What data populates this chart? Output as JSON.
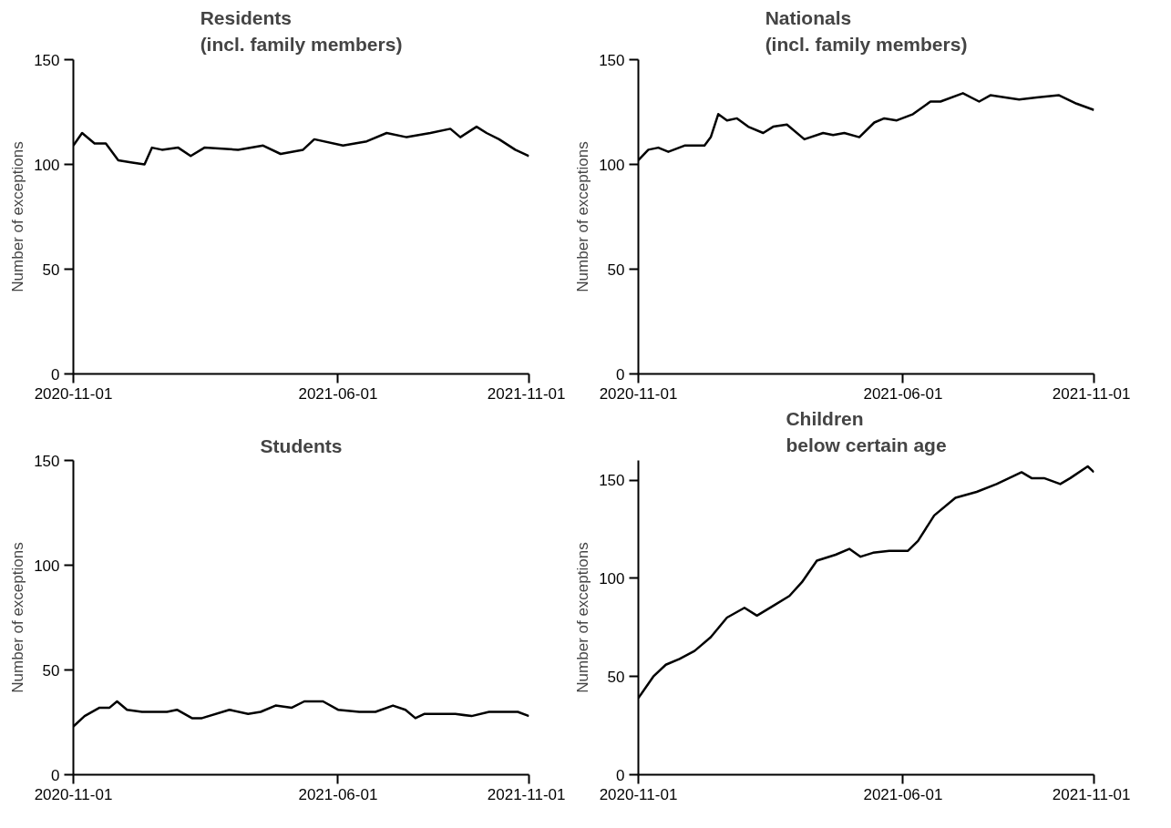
{
  "chart_data": [
    {
      "type": "line",
      "title": "Residents\n(incl. family members)",
      "ylabel": "Number of exceptions",
      "xlim": [
        "2020-11-01",
        "2021-11-01"
      ],
      "xticks": [
        "2020-11-01",
        "2021-06-01",
        "2021-11-01"
      ],
      "ylim": [
        0,
        150
      ],
      "yticks": [
        0,
        50,
        100,
        150
      ],
      "grid": false,
      "series": [
        {
          "color": "#000000",
          "x": [
            "2020-11-01",
            "2020-11-08",
            "2020-11-18",
            "2020-11-27",
            "2020-12-07",
            "2020-12-17",
            "2020-12-28",
            "2021-01-03",
            "2021-01-11",
            "2021-01-24",
            "2021-02-03",
            "2021-02-14",
            "2021-03-13",
            "2021-04-02",
            "2021-04-16",
            "2021-05-04",
            "2021-05-13",
            "2021-06-05",
            "2021-06-24",
            "2021-07-10",
            "2021-07-26",
            "2021-08-14",
            "2021-08-30",
            "2021-09-07",
            "2021-09-20",
            "2021-09-28",
            "2021-10-08",
            "2021-10-21",
            "2021-11-01"
          ],
          "values": [
            109,
            115,
            110,
            110,
            102,
            101,
            100,
            108,
            107,
            108,
            104,
            108,
            107,
            109,
            105,
            107,
            112,
            109,
            111,
            115,
            113,
            115,
            117,
            113,
            118,
            115,
            112,
            107,
            104
          ]
        }
      ]
    },
    {
      "type": "line",
      "title": "Nationals\n(incl. family members)",
      "ylabel": "Number of exceptions",
      "xlim": [
        "2020-11-01",
        "2021-11-01"
      ],
      "xticks": [
        "2020-11-01",
        "2021-06-01",
        "2021-11-01"
      ],
      "ylim": [
        0,
        150
      ],
      "yticks": [
        0,
        50,
        100,
        150
      ],
      "grid": false,
      "series": [
        {
          "color": "#000000",
          "x": [
            "2020-11-01",
            "2020-11-09",
            "2020-11-17",
            "2020-11-25",
            "2020-12-08",
            "2020-12-24",
            "2020-12-29",
            "2021-01-04",
            "2021-01-11",
            "2021-01-19",
            "2021-01-28",
            "2021-02-09",
            "2021-02-17",
            "2021-02-28",
            "2021-03-14",
            "2021-03-29",
            "2021-04-06",
            "2021-04-15",
            "2021-04-27",
            "2021-05-09",
            "2021-05-17",
            "2021-05-27",
            "2021-06-09",
            "2021-06-23",
            "2021-07-01",
            "2021-07-19",
            "2021-08-01",
            "2021-08-10",
            "2021-08-22",
            "2021-09-02",
            "2021-09-16",
            "2021-10-04",
            "2021-10-18",
            "2021-11-01"
          ],
          "values": [
            102,
            107,
            108,
            106,
            109,
            109,
            113,
            124,
            121,
            122,
            118,
            115,
            118,
            119,
            112,
            115,
            114,
            115,
            113,
            120,
            122,
            121,
            124,
            130,
            130,
            134,
            130,
            133,
            132,
            131,
            132,
            133,
            129,
            126
          ]
        }
      ]
    },
    {
      "type": "line",
      "title": "Students",
      "ylabel": "Number of exceptions",
      "xlim": [
        "2020-11-01",
        "2021-11-01"
      ],
      "xticks": [
        "2020-11-01",
        "2021-06-01",
        "2021-11-01"
      ],
      "ylim": [
        0,
        150
      ],
      "yticks": [
        0,
        50,
        100,
        150
      ],
      "grid": false,
      "series": [
        {
          "color": "#000000",
          "x": [
            "2020-11-01",
            "2020-11-10",
            "2020-11-22",
            "2020-11-30",
            "2020-12-06",
            "2020-12-14",
            "2020-12-26",
            "2021-01-15",
            "2021-01-23",
            "2021-02-04",
            "2021-02-12",
            "2021-03-06",
            "2021-03-21",
            "2021-03-31",
            "2021-04-12",
            "2021-04-25",
            "2021-05-05",
            "2021-05-20",
            "2021-06-01",
            "2021-06-18",
            "2021-07-01",
            "2021-07-15",
            "2021-07-25",
            "2021-08-02",
            "2021-08-09",
            "2021-09-03",
            "2021-09-16",
            "2021-09-30",
            "2021-10-23",
            "2021-11-01"
          ],
          "values": [
            23,
            28,
            32,
            32,
            35,
            31,
            30,
            30,
            31,
            27,
            27,
            31,
            29,
            30,
            33,
            32,
            35,
            35,
            31,
            30,
            30,
            33,
            31,
            27,
            29,
            29,
            28,
            30,
            30,
            28
          ]
        }
      ]
    },
    {
      "type": "line",
      "title": "Children\nbelow certain age",
      "ylabel": "Number of exceptions",
      "xlim": [
        "2020-11-01",
        "2021-11-01"
      ],
      "xticks": [
        "2020-11-01",
        "2021-06-01",
        "2021-11-01"
      ],
      "ylim": [
        0,
        160
      ],
      "yticks": [
        0,
        50,
        100,
        150
      ],
      "grid": false,
      "series": [
        {
          "color": "#000000",
          "x": [
            "2020-11-01",
            "2020-11-13",
            "2020-11-23",
            "2020-12-04",
            "2020-12-16",
            "2020-12-29",
            "2021-01-11",
            "2021-01-25",
            "2021-02-04",
            "2021-02-17",
            "2021-03-02",
            "2021-03-12",
            "2021-03-24",
            "2021-04-08",
            "2021-04-19",
            "2021-04-28",
            "2021-05-08",
            "2021-05-21",
            "2021-06-05",
            "2021-06-13",
            "2021-06-26",
            "2021-07-13",
            "2021-07-30",
            "2021-08-15",
            "2021-09-04",
            "2021-09-12",
            "2021-09-22",
            "2021-10-05",
            "2021-10-13",
            "2021-10-27",
            "2021-11-01"
          ],
          "values": [
            39,
            50,
            56,
            59,
            63,
            70,
            80,
            85,
            81,
            86,
            91,
            98,
            109,
            112,
            115,
            111,
            113,
            114,
            114,
            119,
            132,
            141,
            144,
            148,
            154,
            151,
            151,
            148,
            151,
            157,
            154
          ]
        }
      ]
    }
  ]
}
